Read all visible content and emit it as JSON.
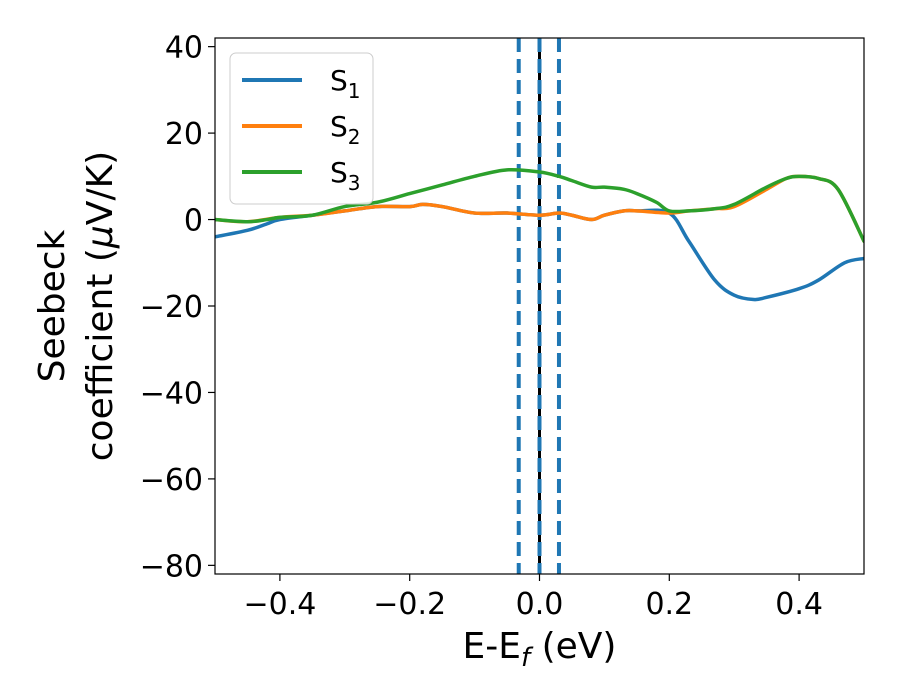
{
  "chart_data": {
    "type": "line",
    "title": "",
    "xlabel_main": "E-E",
    "xlabel_sub": "f",
    "xlabel_unit": " (eV)",
    "ylabel_line1": "Seebeck",
    "ylabel_line2_pre": "coefficient  (",
    "ylabel_mu": "μ",
    "ylabel_line2_post": "V/K)",
    "xlim": [
      -0.5,
      0.5
    ],
    "ylim": [
      -82,
      42
    ],
    "xticks": [
      -0.4,
      -0.2,
      0.0,
      0.2,
      0.4
    ],
    "xtick_labels": [
      "−0.4",
      "−0.2",
      "0.0",
      "0.2",
      "0.4"
    ],
    "yticks": [
      40,
      20,
      0,
      -20,
      -40,
      -60,
      -80
    ],
    "ytick_labels": [
      "40",
      "20",
      "0",
      "−20",
      "−40",
      "−60",
      "−80"
    ],
    "legend_position": "top-left",
    "series": [
      {
        "name": "S",
        "subscript": "1",
        "color": "#1f77b4",
        "x": [
          -0.5,
          -0.45,
          -0.42,
          -0.4,
          -0.35,
          -0.3,
          -0.25,
          -0.2,
          -0.18,
          -0.15,
          -0.1,
          -0.05,
          0.0,
          0.03,
          0.05,
          0.08,
          0.1,
          0.13,
          0.15,
          0.2,
          0.23,
          0.27,
          0.3,
          0.33,
          0.35,
          0.4,
          0.43,
          0.47,
          0.5
        ],
        "y": [
          -4,
          -2.5,
          -1,
          0,
          1,
          2,
          3,
          3,
          3.5,
          3,
          1.5,
          1.5,
          1,
          1.5,
          1,
          0,
          1,
          2,
          2,
          1.5,
          -5,
          -14,
          -17.5,
          -18.5,
          -18,
          -16,
          -14,
          -10,
          -9
        ]
      },
      {
        "name": "S",
        "subscript": "2",
        "color": "#ff7f0e",
        "x": [
          -0.5,
          -0.45,
          -0.4,
          -0.35,
          -0.3,
          -0.25,
          -0.2,
          -0.18,
          -0.15,
          -0.1,
          -0.05,
          0.0,
          0.03,
          0.05,
          0.08,
          0.1,
          0.13,
          0.15,
          0.2,
          0.23,
          0.27,
          0.3,
          0.35,
          0.38,
          0.4,
          0.43,
          0.46,
          0.5
        ],
        "y": [
          0,
          -0.5,
          0.5,
          1,
          2,
          3,
          3,
          3.5,
          3,
          1.5,
          1.5,
          1,
          1.5,
          1,
          0,
          1,
          2,
          2,
          1.5,
          2,
          2.5,
          3,
          7,
          9.5,
          10,
          9.5,
          7,
          -5
        ]
      },
      {
        "name": "S",
        "subscript": "3",
        "color": "#2ca02c",
        "x": [
          -0.5,
          -0.45,
          -0.42,
          -0.4,
          -0.35,
          -0.3,
          -0.25,
          -0.2,
          -0.15,
          -0.1,
          -0.05,
          0.0,
          0.03,
          0.05,
          0.08,
          0.1,
          0.13,
          0.15,
          0.18,
          0.2,
          0.23,
          0.27,
          0.3,
          0.35,
          0.38,
          0.4,
          0.43,
          0.46,
          0.5
        ],
        "y": [
          0,
          -0.5,
          0,
          0.5,
          1,
          3,
          4,
          6,
          8,
          10,
          11.5,
          11,
          10,
          9,
          7.5,
          7.5,
          7,
          6,
          4,
          2,
          2,
          2.5,
          3.5,
          7.5,
          9.5,
          10,
          9.5,
          7,
          -5
        ]
      }
    ],
    "vlines": [
      {
        "x": -0.032,
        "style": "dashed",
        "color": "#1f77b4"
      },
      {
        "x": 0.0,
        "style": "solid",
        "color": "#000000"
      },
      {
        "x": 0.0,
        "style": "dashed",
        "color": "#1f77b4"
      },
      {
        "x": 0.03,
        "style": "dashed",
        "color": "#1f77b4"
      }
    ]
  }
}
